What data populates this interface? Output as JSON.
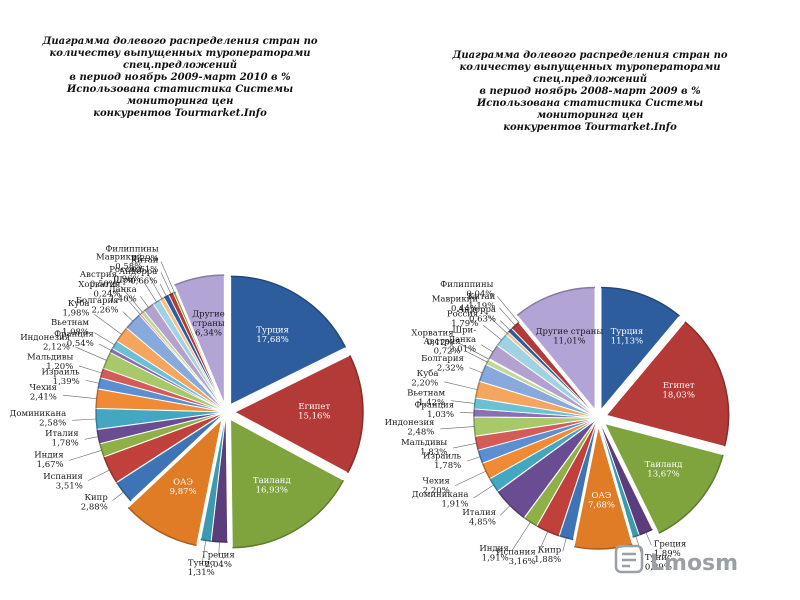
{
  "chart_data": [
    {
      "type": "pie",
      "title": "Диаграмма долевого распределения стран по\nколичеству выпущенных туроператорами\nспец.предложений\nв период ноябрь 2009-март 2010 в %\nИспользована статистика Системы мониторинга цен\nконкурентов Tourmarket.Info",
      "slices": [
        {
          "label": "Турция",
          "value": 17.68,
          "display": "17,68%",
          "color": "#2e5d9e",
          "exploded": true
        },
        {
          "label": "Египет",
          "value": 15.16,
          "display": "15,16%",
          "color": "#b33a36",
          "exploded": true
        },
        {
          "label": "Таиланд",
          "value": 16.93,
          "display": "16,93%",
          "color": "#7fa33d",
          "exploded": true
        },
        {
          "label": "Греция",
          "value": 2.04,
          "display": "2,04%",
          "color": "#5a3d7a"
        },
        {
          "label": "Тунис",
          "value": 1.31,
          "display": "1,31%",
          "color": "#3c9ab0"
        },
        {
          "label": "ОАЭ",
          "value": 9.87,
          "display": "9,87%",
          "color": "#e07b26",
          "exploded": true
        },
        {
          "label": "Кипр",
          "value": 2.88,
          "display": "2,88%",
          "color": "#3e74b5"
        },
        {
          "label": "Испания",
          "value": 3.51,
          "display": "3,51%",
          "color": "#c0413c"
        },
        {
          "label": "Индия",
          "value": 1.67,
          "display": "1,67%",
          "color": "#8fb046"
        },
        {
          "label": "Италия",
          "value": 1.78,
          "display": "1,78%",
          "color": "#6a4c93"
        },
        {
          "label": "Доминикана",
          "value": 2.58,
          "display": "2,58%",
          "color": "#43a7c2"
        },
        {
          "label": "Чехия",
          "value": 2.41,
          "display": "2,41%",
          "color": "#f08a35"
        },
        {
          "label": "Израиль",
          "value": 1.39,
          "display": "1,39%",
          "color": "#5b8fd1"
        },
        {
          "label": "Мальдивы",
          "value": 1.2,
          "display": "1,20%",
          "color": "#d45c58"
        },
        {
          "label": "Индонезия",
          "value": 2.12,
          "display": "2,12%",
          "color": "#a7c96a"
        },
        {
          "label": "Франция",
          "value": 0.54,
          "display": "0,54%",
          "color": "#8a6fb3"
        },
        {
          "label": "Вьетнам",
          "value": 1.08,
          "display": "1,08%",
          "color": "#6cc0d6"
        },
        {
          "label": "Куба",
          "value": 1.98,
          "display": "1,98%",
          "color": "#f4a55e"
        },
        {
          "label": "Болгария",
          "value": 2.26,
          "display": "2,26%",
          "color": "#87a9dc"
        },
        {
          "label": "Хорватия",
          "value": 0.24,
          "display": "0,24%",
          "color": "#e08a86"
        },
        {
          "label": "Австрия",
          "value": 0.5,
          "display": "0,50%",
          "color": "#c0d99a"
        },
        {
          "label": "Шри-\nЛанка",
          "value": 1.4,
          "display": "1,40%",
          "color": "#b3a1cf"
        },
        {
          "label": "Россия",
          "value": 0.96,
          "display": "0,96%",
          "color": "#9fd3e3"
        },
        {
          "label": "Маврикий",
          "value": 0.58,
          "display": "0,58%",
          "color": "#f6c08c"
        },
        {
          "label": "Андорра",
          "value": 0.66,
          "display": "0,66%",
          "color": "#2e5d9e"
        },
        {
          "label": "Китай",
          "value": 0.61,
          "display": "0,61%",
          "color": "#b33a36"
        },
        {
          "label": "Филиппины",
          "value": 0.29,
          "display": "0,29%",
          "color": "#7fa33d"
        },
        {
          "label": "Другие\nстраны",
          "value": 6.34,
          "display": "6,34%",
          "color": "#b3a4d6",
          "exploded": true
        }
      ]
    },
    {
      "type": "pie",
      "title": "Диаграмма долевого распределения стран по\nколичеству выпущенных туроператорами\nспец.предложений\nв период ноябрь 2008-март 2009 в %\nИспользована статистика Системы мониторинга цен\nконкурентов Tourmarket.Info",
      "slices": [
        {
          "label": "Турция",
          "value": 11.13,
          "display": "11,13%",
          "color": "#2e5d9e",
          "exploded": true
        },
        {
          "label": "Египет",
          "value": 18.03,
          "display": "18,03%",
          "color": "#b33a36",
          "exploded": true
        },
        {
          "label": "Таиланд",
          "value": 13.67,
          "display": "13,67%",
          "color": "#7fa33d",
          "exploded": true
        },
        {
          "label": "Греция",
          "value": 1.89,
          "display": "1,89%",
          "color": "#5a3d7a"
        },
        {
          "label": "Тунис",
          "value": 0.89,
          "display": "0,89%",
          "color": "#3c9ab0"
        },
        {
          "label": "ОАЭ",
          "value": 7.68,
          "display": "7,68%",
          "color": "#e07b26",
          "exploded": true
        },
        {
          "label": "Кипр",
          "value": 1.88,
          "display": "1,88%",
          "color": "#3e74b5"
        },
        {
          "label": "Испания",
          "value": 3.16,
          "display": "3,16%",
          "color": "#c0413c"
        },
        {
          "label": "Индия",
          "value": 1.91,
          "display": "1,91%",
          "color": "#8fb046"
        },
        {
          "label": "Италия",
          "value": 4.85,
          "display": "4,85%",
          "color": "#6a4c93"
        },
        {
          "label": "Доминикана",
          "value": 1.91,
          "display": "1,91%",
          "color": "#43a7c2"
        },
        {
          "label": "Чехия",
          "value": 2.2,
          "display": "2,20%",
          "color": "#f08a35"
        },
        {
          "label": "Израиль",
          "value": 1.78,
          "display": "1,78%",
          "color": "#5b8fd1"
        },
        {
          "label": "Мальдивы",
          "value": 1.83,
          "display": "1,83%",
          "color": "#d45c58"
        },
        {
          "label": "Индонезия",
          "value": 2.48,
          "display": "2,48%",
          "color": "#a7c96a"
        },
        {
          "label": "Франция",
          "value": 1.03,
          "display": "1,03%",
          "color": "#8a6fb3"
        },
        {
          "label": "Вьетнам",
          "value": 1.42,
          "display": "1,42%",
          "color": "#6cc0d6"
        },
        {
          "label": "Куба",
          "value": 2.2,
          "display": "2,20%",
          "color": "#f4a55e"
        },
        {
          "label": "Болгария",
          "value": 2.32,
          "display": "2,32%",
          "color": "#87a9dc"
        },
        {
          "label": "Австрия",
          "value": 0.72,
          "display": "0,72%",
          "color": "#c0d99a"
        },
        {
          "label": "Хорватия",
          "value": 0.12,
          "display": "0,12%",
          "color": "#e08a86"
        },
        {
          "label": "Шри-\nЛанка",
          "value": 2.01,
          "display": "2,01%",
          "color": "#b3a1cf"
        },
        {
          "label": "Россия",
          "value": 1.79,
          "display": "1,79%",
          "color": "#9fd3e3"
        },
        {
          "label": "Маврикий",
          "value": 0.44,
          "display": "0,44%",
          "color": "#f6c08c"
        },
        {
          "label": "Андорра",
          "value": 0.63,
          "display": "0,63%",
          "color": "#2e5d9e"
        },
        {
          "label": "Китай",
          "value": 1.19,
          "display": "1,19%",
          "color": "#b33a36"
        },
        {
          "label": "Филиппины",
          "value": 0.04,
          "display": "0,04%",
          "color": "#7fa33d"
        },
        {
          "label": "Другие страны",
          "value": 11.01,
          "display": "11,01%",
          "color": "#b3a4d6",
          "exploded": true
        }
      ]
    }
  ],
  "logo": {
    "text": "Lmosm"
  }
}
